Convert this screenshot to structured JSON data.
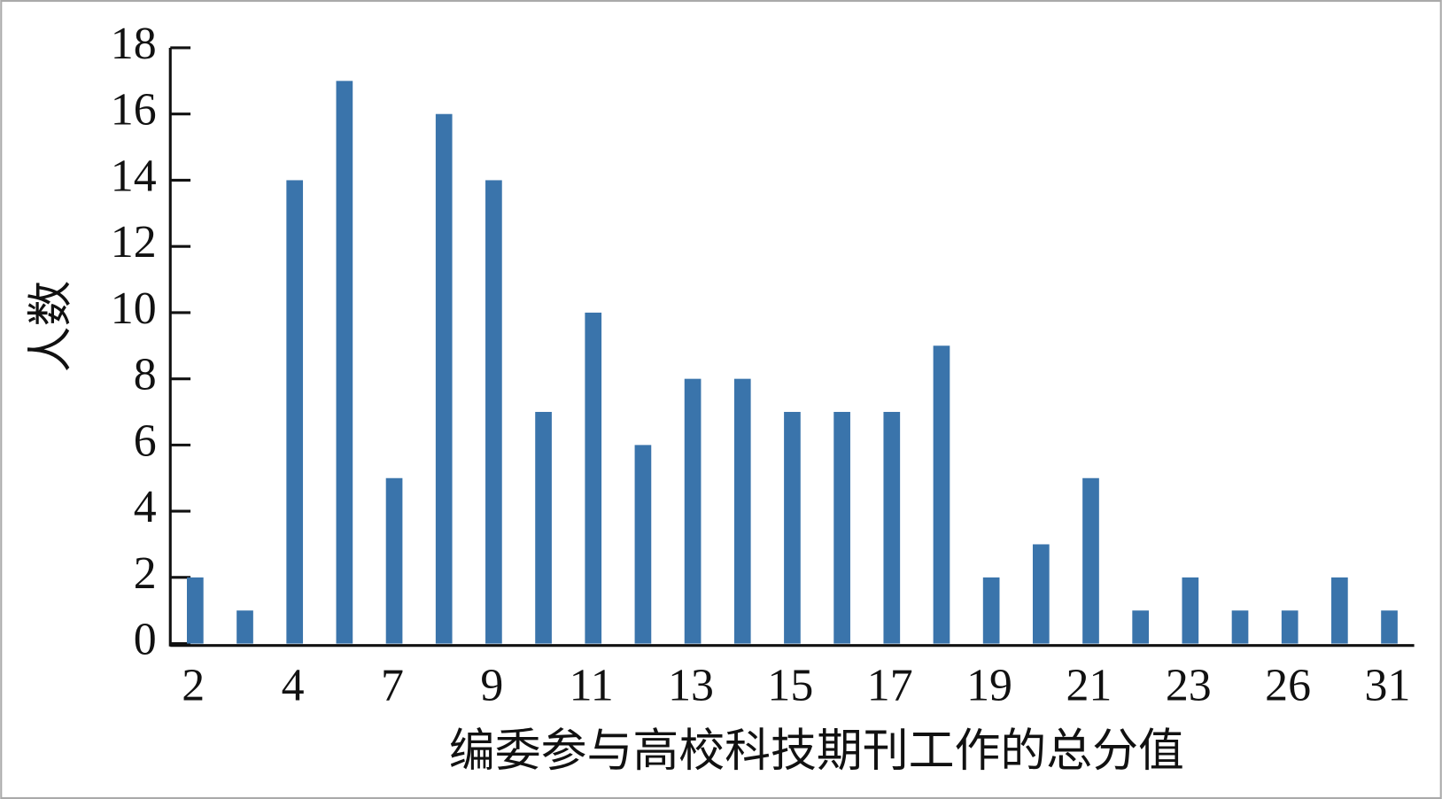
{
  "chart_data": {
    "type": "bar",
    "x_label": "编委参与高校科技期刊工作的总分值",
    "y_label": "人数",
    "categories": [
      "2",
      null,
      "4",
      null,
      "7",
      null,
      "9",
      null,
      "11",
      null,
      "13",
      null,
      "15",
      null,
      "17",
      null,
      "19",
      null,
      "21",
      null,
      "23",
      null,
      "26",
      null,
      "31"
    ],
    "values": [
      2,
      1,
      14,
      17,
      5,
      16,
      14,
      7,
      10,
      6,
      8,
      8,
      7,
      7,
      7,
      9,
      2,
      3,
      5,
      1,
      2,
      1,
      1,
      2,
      1
    ],
    "color": "#3a74ab",
    "ylim": [
      0,
      18
    ],
    "yticks": [
      0,
      2,
      4,
      6,
      8,
      10,
      12,
      14,
      16,
      18
    ],
    "grid": false
  }
}
